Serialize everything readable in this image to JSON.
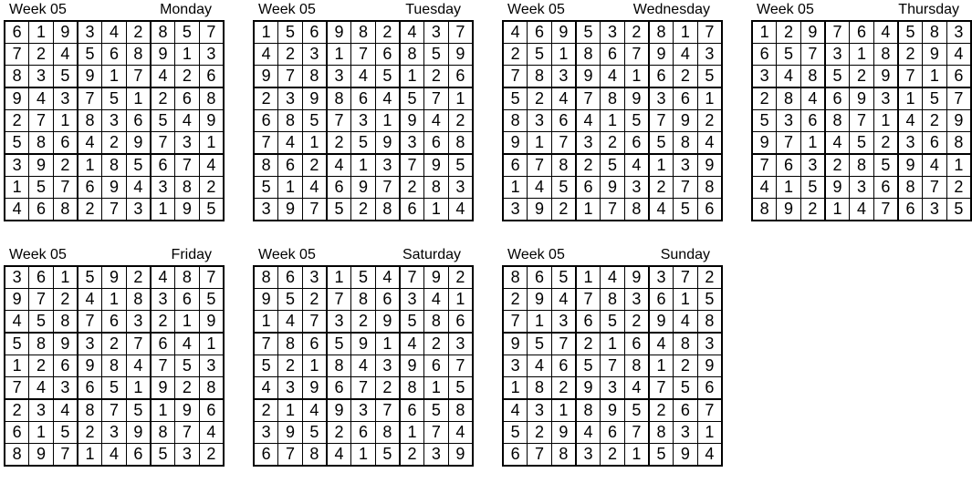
{
  "colors": {
    "background": "#ffffff",
    "text": "#000000",
    "grid_border": "#000000"
  },
  "grids": [
    {
      "week_label": "Week 05",
      "day": "Monday",
      "rows": [
        [
          6,
          1,
          9,
          3,
          4,
          2,
          8,
          5,
          7
        ],
        [
          7,
          2,
          4,
          5,
          6,
          8,
          9,
          1,
          3
        ],
        [
          8,
          3,
          5,
          9,
          1,
          7,
          4,
          2,
          6
        ],
        [
          9,
          4,
          3,
          7,
          5,
          1,
          2,
          6,
          8
        ],
        [
          2,
          7,
          1,
          8,
          3,
          6,
          5,
          4,
          9
        ],
        [
          5,
          8,
          6,
          4,
          2,
          9,
          7,
          3,
          1
        ],
        [
          3,
          9,
          2,
          1,
          8,
          5,
          6,
          7,
          4
        ],
        [
          1,
          5,
          7,
          6,
          9,
          4,
          3,
          8,
          2
        ],
        [
          4,
          6,
          8,
          2,
          7,
          3,
          1,
          9,
          5
        ]
      ]
    },
    {
      "week_label": "Week 05",
      "day": "Tuesday",
      "rows": [
        [
          1,
          5,
          6,
          9,
          8,
          2,
          4,
          3,
          7
        ],
        [
          4,
          2,
          3,
          1,
          7,
          6,
          8,
          5,
          9
        ],
        [
          9,
          7,
          8,
          3,
          4,
          5,
          1,
          2,
          6
        ],
        [
          2,
          3,
          9,
          8,
          6,
          4,
          5,
          7,
          1
        ],
        [
          6,
          8,
          5,
          7,
          3,
          1,
          9,
          4,
          2
        ],
        [
          7,
          4,
          1,
          2,
          5,
          9,
          3,
          6,
          8
        ],
        [
          8,
          6,
          2,
          4,
          1,
          3,
          7,
          9,
          5
        ],
        [
          5,
          1,
          4,
          6,
          9,
          7,
          2,
          8,
          3
        ],
        [
          3,
          9,
          7,
          5,
          2,
          8,
          6,
          1,
          4
        ]
      ]
    },
    {
      "week_label": "Week 05",
      "day": "Wednesday",
      "rows": [
        [
          4,
          6,
          9,
          5,
          3,
          2,
          8,
          1,
          7
        ],
        [
          2,
          5,
          1,
          8,
          6,
          7,
          9,
          4,
          3
        ],
        [
          7,
          8,
          3,
          9,
          4,
          1,
          6,
          2,
          5
        ],
        [
          5,
          2,
          4,
          7,
          8,
          9,
          3,
          6,
          1
        ],
        [
          8,
          3,
          6,
          4,
          1,
          5,
          7,
          9,
          2
        ],
        [
          9,
          1,
          7,
          3,
          2,
          6,
          5,
          8,
          4
        ],
        [
          6,
          7,
          8,
          2,
          5,
          4,
          1,
          3,
          9
        ],
        [
          1,
          4,
          5,
          6,
          9,
          3,
          2,
          7,
          8
        ],
        [
          3,
          9,
          2,
          1,
          7,
          8,
          4,
          5,
          6
        ]
      ]
    },
    {
      "week_label": "Week 05",
      "day": "Thursday",
      "rows": [
        [
          1,
          2,
          9,
          7,
          6,
          4,
          5,
          8,
          3
        ],
        [
          6,
          5,
          7,
          3,
          1,
          8,
          2,
          9,
          4
        ],
        [
          3,
          4,
          8,
          5,
          2,
          9,
          7,
          1,
          6
        ],
        [
          2,
          8,
          4,
          6,
          9,
          3,
          1,
          5,
          7
        ],
        [
          5,
          3,
          6,
          8,
          7,
          1,
          4,
          2,
          9
        ],
        [
          9,
          7,
          1,
          4,
          5,
          2,
          3,
          6,
          8
        ],
        [
          7,
          6,
          3,
          2,
          8,
          5,
          9,
          4,
          1
        ],
        [
          4,
          1,
          5,
          9,
          3,
          6,
          8,
          7,
          2
        ],
        [
          8,
          9,
          2,
          1,
          4,
          7,
          6,
          3,
          5
        ]
      ]
    },
    {
      "week_label": "Week 05",
      "day": "Friday",
      "rows": [
        [
          3,
          6,
          1,
          5,
          9,
          2,
          4,
          8,
          7
        ],
        [
          9,
          7,
          2,
          4,
          1,
          8,
          3,
          6,
          5
        ],
        [
          4,
          5,
          8,
          7,
          6,
          3,
          2,
          1,
          9
        ],
        [
          5,
          8,
          9,
          3,
          2,
          7,
          6,
          4,
          1
        ],
        [
          1,
          2,
          6,
          9,
          8,
          4,
          7,
          5,
          3
        ],
        [
          7,
          4,
          3,
          6,
          5,
          1,
          9,
          2,
          8
        ],
        [
          2,
          3,
          4,
          8,
          7,
          5,
          1,
          9,
          6
        ],
        [
          6,
          1,
          5,
          2,
          3,
          9,
          8,
          7,
          4
        ],
        [
          8,
          9,
          7,
          1,
          4,
          6,
          5,
          3,
          2
        ]
      ]
    },
    {
      "week_label": "Week 05",
      "day": "Saturday",
      "rows": [
        [
          8,
          6,
          3,
          1,
          5,
          4,
          7,
          9,
          2
        ],
        [
          9,
          5,
          2,
          7,
          8,
          6,
          3,
          4,
          1
        ],
        [
          1,
          4,
          7,
          3,
          2,
          9,
          5,
          8,
          6
        ],
        [
          7,
          8,
          6,
          5,
          9,
          1,
          4,
          2,
          3
        ],
        [
          5,
          2,
          1,
          8,
          4,
          3,
          9,
          6,
          7
        ],
        [
          4,
          3,
          9,
          6,
          7,
          2,
          8,
          1,
          5
        ],
        [
          2,
          1,
          4,
          9,
          3,
          7,
          6,
          5,
          8
        ],
        [
          3,
          9,
          5,
          2,
          6,
          8,
          1,
          7,
          4
        ],
        [
          6,
          7,
          8,
          4,
          1,
          5,
          2,
          3,
          9
        ]
      ]
    },
    {
      "week_label": "Week 05",
      "day": "Sunday",
      "rows": [
        [
          8,
          6,
          5,
          1,
          4,
          9,
          3,
          7,
          2
        ],
        [
          2,
          9,
          4,
          7,
          8,
          3,
          6,
          1,
          5
        ],
        [
          7,
          1,
          3,
          6,
          5,
          2,
          9,
          4,
          8
        ],
        [
          9,
          5,
          7,
          2,
          1,
          6,
          4,
          8,
          3
        ],
        [
          3,
          4,
          6,
          5,
          7,
          8,
          1,
          2,
          9
        ],
        [
          1,
          8,
          2,
          9,
          3,
          4,
          7,
          5,
          6
        ],
        [
          4,
          3,
          1,
          8,
          9,
          5,
          2,
          6,
          7
        ],
        [
          5,
          2,
          9,
          4,
          6,
          7,
          8,
          3,
          1
        ],
        [
          6,
          7,
          8,
          3,
          2,
          1,
          5,
          9,
          4
        ]
      ]
    }
  ]
}
